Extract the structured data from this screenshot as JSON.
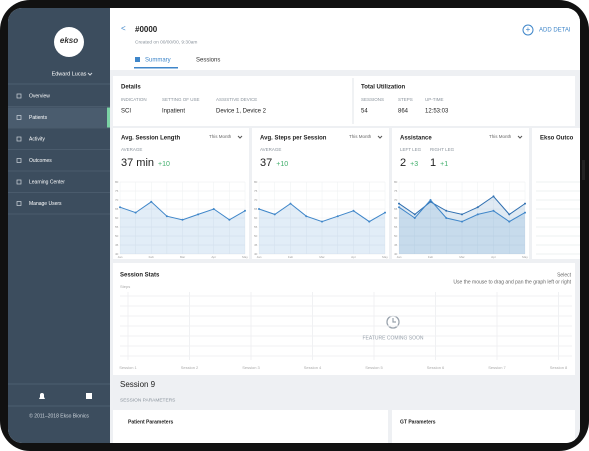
{
  "sidebar": {
    "user": "Edward Lucas",
    "menu": [
      "Overview",
      "Patients",
      "Activity",
      "Outcomes",
      "Learning Center",
      "Manage Users"
    ],
    "footer": "© 2011–2018 Ekso Bionics"
  },
  "header": {
    "back": "<",
    "title": "#0000",
    "created": "Created on 00/00/00, 9:30am",
    "tabs": [
      "Summary",
      "Sessions"
    ],
    "action": "ADD DETAI"
  },
  "details": {
    "title": "Details",
    "fields": [
      {
        "label": "INDICATION",
        "value": "SCI"
      },
      {
        "label": "SETTING OF USE",
        "value": "Inpatient"
      },
      {
        "label": "ASSISTIVE DEVICE",
        "value": "Device 1, Device 2"
      }
    ]
  },
  "utilization": {
    "title": "Total Utilization",
    "fields": [
      {
        "label": "SESSIONS",
        "value": "54"
      },
      {
        "label": "STEPS",
        "value": "864"
      },
      {
        "label": "UP-TIME",
        "value": "12:53:03"
      }
    ]
  },
  "cards": [
    {
      "title": "Avg. Session Length",
      "period": "This Month",
      "metrics": [
        {
          "label": "AVERAGE",
          "value": "37 min",
          "delta": "+10"
        }
      ],
      "chart": {
        "type": "line",
        "x": [
          "Jan",
          null,
          "Feb",
          null,
          "Mar",
          null,
          "Apr",
          null,
          "May"
        ],
        "ylim": [
          40,
          80
        ],
        "yticks": [
          40,
          45,
          50,
          55,
          60,
          65,
          70,
          75,
          80
        ],
        "series": [
          {
            "color": "#3f86c9",
            "values": [
              66,
              63,
              69,
              61,
              59,
              62,
              65,
              59,
              64
            ]
          }
        ]
      }
    },
    {
      "title": "Avg. Steps per Session",
      "period": "This Month",
      "metrics": [
        {
          "label": "AVERAGE",
          "value": "37",
          "delta": "+10"
        }
      ],
      "chart": {
        "type": "line",
        "x": [
          "Jan",
          null,
          "Feb",
          null,
          "Mar",
          null,
          "Apr",
          null,
          "May"
        ],
        "ylim": [
          40,
          80
        ],
        "yticks": [
          40,
          45,
          50,
          55,
          60,
          65,
          70,
          75,
          80
        ],
        "series": [
          {
            "color": "#3f86c9",
            "values": [
              65,
              62,
              68,
              61,
              58,
              61,
              64,
              58,
              63
            ]
          }
        ]
      }
    },
    {
      "title": "Assistance",
      "period": "This Month",
      "metrics": [
        {
          "label": "LEFT LEG",
          "value": "2",
          "delta": "+3"
        },
        {
          "label": "RIGHT LEG",
          "value": "1",
          "delta": "+1"
        }
      ],
      "chart": {
        "type": "line",
        "x": [
          "Jan",
          null,
          "Feb",
          null,
          "Mar",
          null,
          "Apr",
          null,
          "May"
        ],
        "ylim": [
          40,
          80
        ],
        "yticks": [
          40,
          45,
          50,
          55,
          60,
          65,
          70,
          75,
          80
        ],
        "series": [
          {
            "color": "#2f6fb0",
            "values": [
              68,
              62,
              69,
              64,
              62,
              66,
              72,
              62,
              68
            ]
          },
          {
            "color": "#3f86c9",
            "values": [
              66,
              60,
              70,
              60,
              58,
              62,
              64,
              58,
              63
            ]
          }
        ]
      }
    },
    {
      "title": "Ekso Outco",
      "period": null,
      "metrics": [],
      "chart": null
    }
  ],
  "session_stats": {
    "title": "Session Stats",
    "select": "Select",
    "hint": "Use the mouse to drag and pan the graph left or right",
    "axis": "Steps",
    "notice": "FEATURE COMING SOON",
    "sessions": [
      "Session 1",
      "Session 2",
      "Session 3",
      "Session 4",
      "Session 5",
      "Session 6",
      "Session 7",
      "Session 8"
    ]
  },
  "session": {
    "title": "Session 9",
    "section": "SESSION PARAMETERS",
    "panels": [
      "Patient Parameters",
      "GT Parameters"
    ]
  }
}
